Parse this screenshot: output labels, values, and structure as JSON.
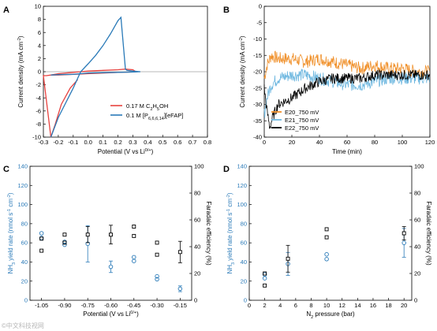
{
  "watermark": "©中文科技视网",
  "chart_data": [
    {
      "panel": "A",
      "type": "line",
      "xlabel": "Potential (V vs Li",
      "xlabel_sup": "0/+",
      "xlabel_end": ")",
      "ylabel": "Current density (mA cm",
      "ylabel_sup": "-2",
      "ylabel_end": ")",
      "xlim": [
        -0.3,
        0.8
      ],
      "ylim": [
        -10,
        10
      ],
      "xticks": [
        "-0.3",
        "-0.2",
        "-0.1",
        "0.0",
        "0.1",
        "0.2",
        "0.3",
        "0.4",
        "0.5",
        "0.6",
        "0.7",
        "0.8"
      ],
      "yticks": [
        "-10",
        "-8",
        "-6",
        "-4",
        "-2",
        "0",
        "2",
        "4",
        "6",
        "8",
        "10"
      ],
      "legend": [
        {
          "label": "0.17 M C",
          "sub1": "2",
          "mid": "H",
          "sub2": "5",
          "end": "OH",
          "color": "#e8423f"
        },
        {
          "label": "0.1 M [P",
          "sub1": "6,6,6,14",
          "mid": "][eFAP]",
          "sub2": "",
          "end": "",
          "color": "#2a7ab8"
        }
      ],
      "series": [
        {
          "name": "0.17 M C2H5OH",
          "color": "#e8423f",
          "x": [
            -0.25,
            -0.2,
            -0.1,
            -0.05,
            0.0,
            0.1,
            0.2,
            0.25,
            0.3,
            0.32,
            0.3,
            0.2,
            0.1,
            0.0,
            -0.1,
            -0.2,
            -0.25,
            -0.28,
            -0.3,
            -0.25,
            -0.22,
            -0.18,
            -0.12,
            -0.07
          ],
          "y": [
            -0.5,
            -0.3,
            -0.1,
            0.0,
            0.1,
            0.2,
            0.3,
            0.4,
            0.3,
            0.0,
            -0.05,
            -0.1,
            -0.2,
            -0.3,
            -0.4,
            -0.5,
            -0.5,
            -0.6,
            -0.6,
            -10,
            -8,
            -5,
            -2.5,
            -1.2
          ]
        },
        {
          "name": "0.1 M [P6,6,6,14][eFAP]",
          "color": "#2a7ab8",
          "x": [
            -0.25,
            -0.2,
            -0.1,
            -0.05,
            0.0,
            0.05,
            0.1,
            0.15,
            0.2,
            0.22,
            0.25,
            0.26,
            0.3,
            0.35,
            0.3,
            0.2,
            0.1,
            0.0,
            -0.05,
            -0.1,
            -0.2,
            -0.25
          ],
          "y": [
            -10,
            -7,
            -2.5,
            0.0,
            1.2,
            2.5,
            4.0,
            5.8,
            7.8,
            8.3,
            0.4,
            0.2,
            0.1,
            0.0,
            -0.05,
            -0.1,
            -0.15,
            -0.2,
            -0.3,
            -0.4,
            -0.45,
            -0.5
          ]
        }
      ]
    },
    {
      "panel": "B",
      "type": "line",
      "xlabel": "Time (min)",
      "ylabel": "Current density (mA cm",
      "ylabel_sup": "-2",
      "ylabel_end": ")",
      "xlim": [
        0,
        120
      ],
      "ylim": [
        -40,
        0
      ],
      "xticks": [
        "0",
        "20",
        "40",
        "60",
        "80",
        "100",
        "120"
      ],
      "yticks": [
        "-40",
        "-35",
        "-30",
        "-25",
        "-20",
        "-15",
        "-10",
        "-5",
        "0"
      ],
      "legend": [
        {
          "label": "E20_750 mV",
          "color": "#f0902a"
        },
        {
          "label": "E21_750 mV",
          "color": "#6fb8e0"
        },
        {
          "label": "E22_750 mV",
          "color": "#000000"
        }
      ],
      "series": [
        {
          "name": "E20_750 mV",
          "color": "#f0902a",
          "x": [
            0,
            2,
            5,
            10,
            20,
            30,
            40,
            50,
            60,
            70,
            80,
            90,
            100,
            110,
            120
          ],
          "y": [
            -22,
            -18,
            -15,
            -16,
            -16,
            -17,
            -16,
            -17,
            -18,
            -19,
            -18,
            -19,
            -19,
            -20,
            -20
          ],
          "noise": 2.0
        },
        {
          "name": "E21_750 mV",
          "color": "#6fb8e0",
          "x": [
            0,
            2,
            5,
            10,
            20,
            30,
            40,
            50,
            60,
            70,
            80,
            90,
            100,
            110,
            120
          ],
          "y": [
            -33,
            -28,
            -24,
            -22,
            -21,
            -21,
            -22,
            -23,
            -24,
            -24,
            -23,
            -22,
            -22,
            -22,
            -22
          ],
          "noise": 2.0
        },
        {
          "name": "E22_750 mV",
          "color": "#000000",
          "x": [
            0,
            2,
            4,
            6,
            10,
            20,
            30,
            40,
            50,
            60,
            70,
            80,
            90,
            100,
            110,
            120
          ],
          "y": [
            -25,
            -32,
            -37,
            -34,
            -30,
            -28,
            -25,
            -23,
            -22,
            -22,
            -22,
            -21,
            -21,
            -21,
            -21,
            -21
          ],
          "noise": 1.6
        }
      ]
    },
    {
      "panel": "C",
      "type": "scatter",
      "xlabel": "Potential (V vs Li",
      "xlabel_sup": "0/+",
      "xlabel_end": ")",
      "ylabel": "NH",
      "ylabel_sub": "3",
      "ylabel_mid": " yield rate (nmol s",
      "ylabel_sup1": "-1",
      "ylabel_mid2": " cm",
      "ylabel_sup2": "-2",
      "ylabel_end": ")",
      "y2label": "Faradaic efficiency (%)",
      "xlim": [
        -1.125,
        -0.075
      ],
      "ylim": [
        0,
        140
      ],
      "y2lim": [
        0,
        100
      ],
      "xticks": [
        "-1.05",
        "-0.90",
        "-0.75",
        "-0.60",
        "-0.45",
        "-0.30",
        "-0.15"
      ],
      "xtick_values": [
        -1.05,
        -0.9,
        -0.75,
        -0.6,
        -0.45,
        -0.3,
        -0.15
      ],
      "yticks": [
        "0",
        "20",
        "40",
        "60",
        "80",
        "100",
        "120",
        "140"
      ],
      "y2ticks": [
        "0",
        "20",
        "40",
        "60",
        "80",
        "100"
      ],
      "yield_rate": {
        "color": "#2a7ab8",
        "points": [
          {
            "x": -1.05,
            "y": 70
          },
          {
            "x": -1.05,
            "y": 65
          },
          {
            "x": -0.9,
            "y": 61
          },
          {
            "x": -0.9,
            "y": 58
          },
          {
            "x": -0.45,
            "y": 45
          },
          {
            "x": -0.45,
            "y": 41
          },
          {
            "x": -0.3,
            "y": 25
          },
          {
            "x": -0.3,
            "y": 22
          }
        ],
        "errorbars": [
          {
            "x": -0.75,
            "y": 59,
            "err": 19
          },
          {
            "x": -0.6,
            "y": 35,
            "err": 6
          },
          {
            "x": -0.15,
            "y": 12,
            "err": 3
          }
        ]
      },
      "faradaic_efficiency": {
        "color": "#000000",
        "points": [
          {
            "x": -1.05,
            "y": 46
          },
          {
            "x": -1.05,
            "y": 37
          },
          {
            "x": -0.9,
            "y": 49
          },
          {
            "x": -0.9,
            "y": 43
          },
          {
            "x": -0.45,
            "y": 55
          },
          {
            "x": -0.45,
            "y": 48
          },
          {
            "x": -0.3,
            "y": 43
          },
          {
            "x": -0.3,
            "y": 34
          }
        ],
        "errorbars": [
          {
            "x": -0.75,
            "y": 49,
            "err": 6
          },
          {
            "x": -0.6,
            "y": 49,
            "err": 7
          },
          {
            "x": -0.15,
            "y": 36,
            "err": 8
          }
        ]
      }
    },
    {
      "panel": "D",
      "type": "scatter",
      "xlabel": "N",
      "xlabel_sub": "2",
      "xlabel_end": " pressure (bar)",
      "ylabel": "NH",
      "ylabel_sub": "3",
      "ylabel_mid": " yield rate (nmol s",
      "ylabel_sup1": "-1",
      "ylabel_mid2": " cm",
      "ylabel_sup2": "-2",
      "ylabel_end": ")",
      "y2label": "Faradaic efficiency (%)",
      "xlim": [
        0,
        21
      ],
      "ylim": [
        0,
        140
      ],
      "y2lim": [
        0,
        100
      ],
      "xticks": [
        "0",
        "2",
        "4",
        "6",
        "8",
        "10",
        "12",
        "14",
        "16",
        "18",
        "20"
      ],
      "xtick_values": [
        0,
        2,
        4,
        6,
        8,
        10,
        12,
        14,
        16,
        18,
        20
      ],
      "yticks": [
        "0",
        "20",
        "40",
        "60",
        "80",
        "100",
        "120",
        "140"
      ],
      "y2ticks": [
        "0",
        "20",
        "40",
        "60",
        "80",
        "100"
      ],
      "yield_rate": {
        "color": "#2a7ab8",
        "points": [
          {
            "x": 2,
            "y": 27
          },
          {
            "x": 2,
            "y": 23
          },
          {
            "x": 10,
            "y": 48
          },
          {
            "x": 10,
            "y": 43
          }
        ],
        "errorbars": [
          {
            "x": 5,
            "y": 38,
            "err": 12
          },
          {
            "x": 20,
            "y": 60,
            "err": 15
          }
        ]
      },
      "faradaic_efficiency": {
        "color": "#000000",
        "points": [
          {
            "x": 2,
            "y": 20
          },
          {
            "x": 2,
            "y": 11
          },
          {
            "x": 10,
            "y": 53
          },
          {
            "x": 10,
            "y": 47
          }
        ],
        "errorbars": [
          {
            "x": 5,
            "y": 31,
            "err": 10
          },
          {
            "x": 20,
            "y": 50,
            "err": 5
          }
        ]
      }
    }
  ]
}
